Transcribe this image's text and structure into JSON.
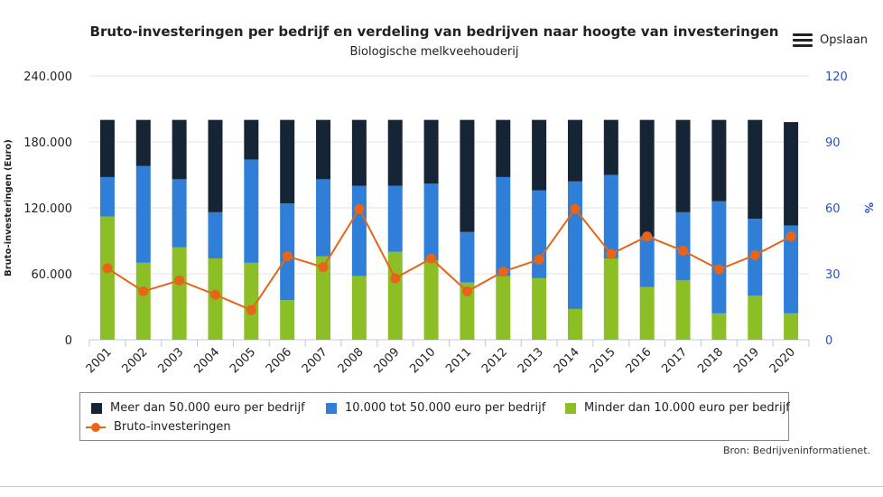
{
  "chart_data": {
    "type": "bar",
    "title": "Bruto-investeringen per bedrijf en verdeling van bedrijven naar hoogte van investeringen",
    "subtitle": "Biologische melkveehouderij",
    "categories": [
      "2001",
      "2002",
      "2003",
      "2004",
      "2005",
      "2006",
      "2007",
      "2008",
      "2009",
      "2010",
      "2011",
      "2012",
      "2013",
      "2014",
      "2015",
      "2016",
      "2017",
      "2018",
      "2019",
      "2020"
    ],
    "y_left": {
      "label": "Bruto-investeringen (Euro)",
      "range": [
        0,
        240000
      ],
      "ticks": [
        "0",
        "60.000",
        "120.000",
        "180.000",
        "240.000"
      ]
    },
    "y_right": {
      "label": "%",
      "range": [
        0,
        120
      ],
      "ticks": [
        "0",
        "30",
        "60",
        "90",
        "120"
      ]
    },
    "stacked_series": [
      {
        "name": "Minder dan 10.000 euro per bedrijf",
        "color": "#8cbf26",
        "axis": "right",
        "values": [
          56,
          35,
          42,
          37,
          35,
          18,
          38,
          29,
          40,
          36,
          26,
          29,
          28,
          14,
          37,
          24,
          27,
          12,
          20,
          12
        ]
      },
      {
        "name": "10.000 tot 50.000 euro per bedrijf",
        "color": "#2f7fd8",
        "axis": "right",
        "values": [
          18,
          44,
          31,
          21,
          47,
          44,
          35,
          41,
          30,
          35,
          23,
          45,
          40,
          58,
          38,
          23,
          31,
          51,
          35,
          40
        ]
      },
      {
        "name": "Meer dan 50.000 euro per bedrijf",
        "color": "#152535",
        "axis": "right",
        "values": [
          26,
          21,
          27,
          42,
          18,
          38,
          27,
          30,
          30,
          29,
          51,
          26,
          32,
          28,
          25,
          53,
          42,
          37,
          45,
          47
        ]
      }
    ],
    "line_series": {
      "name": "Bruto-investeringen",
      "color": "#e86419",
      "axis": "left",
      "values": [
        65000,
        44000,
        54000,
        41000,
        27000,
        76000,
        66000,
        119000,
        56000,
        74000,
        44000,
        62000,
        73000,
        119000,
        78000,
        94000,
        81000,
        64000,
        77000,
        94000
      ]
    },
    "grid": true,
    "legend_position": "bottom"
  },
  "toolbar": {
    "save_label": "Opslaan"
  },
  "source": "Bron: Bedrijveninformatienet."
}
